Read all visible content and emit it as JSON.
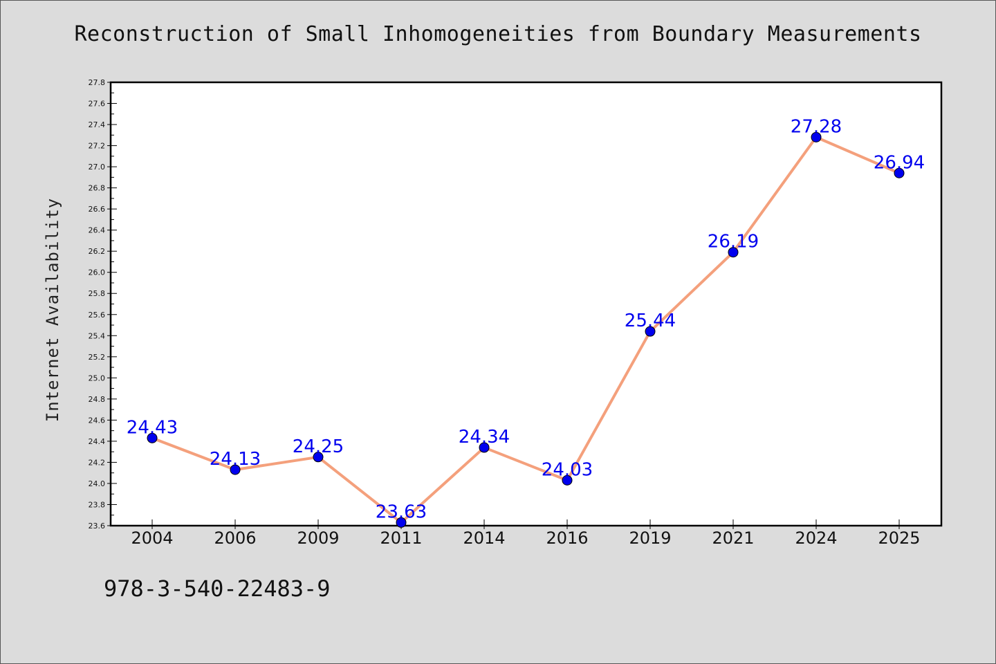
{
  "chart_data": {
    "type": "line",
    "title": "Reconstruction of Small Inhomogeneities from Boundary Measurements",
    "xlabel": "",
    "ylabel": "Internet Availability",
    "categories": [
      "2004",
      "2006",
      "2009",
      "2011",
      "2014",
      "2016",
      "2019",
      "2021",
      "2024",
      "2025"
    ],
    "series": [
      {
        "values": [
          24.43,
          24.13,
          24.25,
          23.63,
          24.34,
          24.03,
          25.44,
          26.19,
          27.28,
          26.94
        ]
      }
    ],
    "data_labels": [
      "24.43",
      "24.13",
      "24.25",
      "23.63",
      "24.34",
      "24.03",
      "25.44",
      "26.19",
      "27.28",
      "26.94"
    ],
    "ylim": [
      23.6,
      27.8
    ],
    "yticks": [
      "23.6",
      "23.8",
      "24.0",
      "24.2",
      "24.4",
      "24.6",
      "24.8",
      "25.0",
      "25.2",
      "25.4",
      "25.6",
      "25.8",
      "26.0",
      "26.2",
      "26.4",
      "26.6",
      "26.8",
      "27.0",
      "27.2",
      "27.4",
      "27.6",
      "27.8"
    ],
    "grid": false,
    "legend": "none",
    "colors": {
      "line": "#f4a07c",
      "marker": "#0000ee",
      "label": "#0000ee",
      "background": "#dcdcdc",
      "plot_background": "#ffffff"
    }
  },
  "footer_text": "978-3-540-22483-9"
}
